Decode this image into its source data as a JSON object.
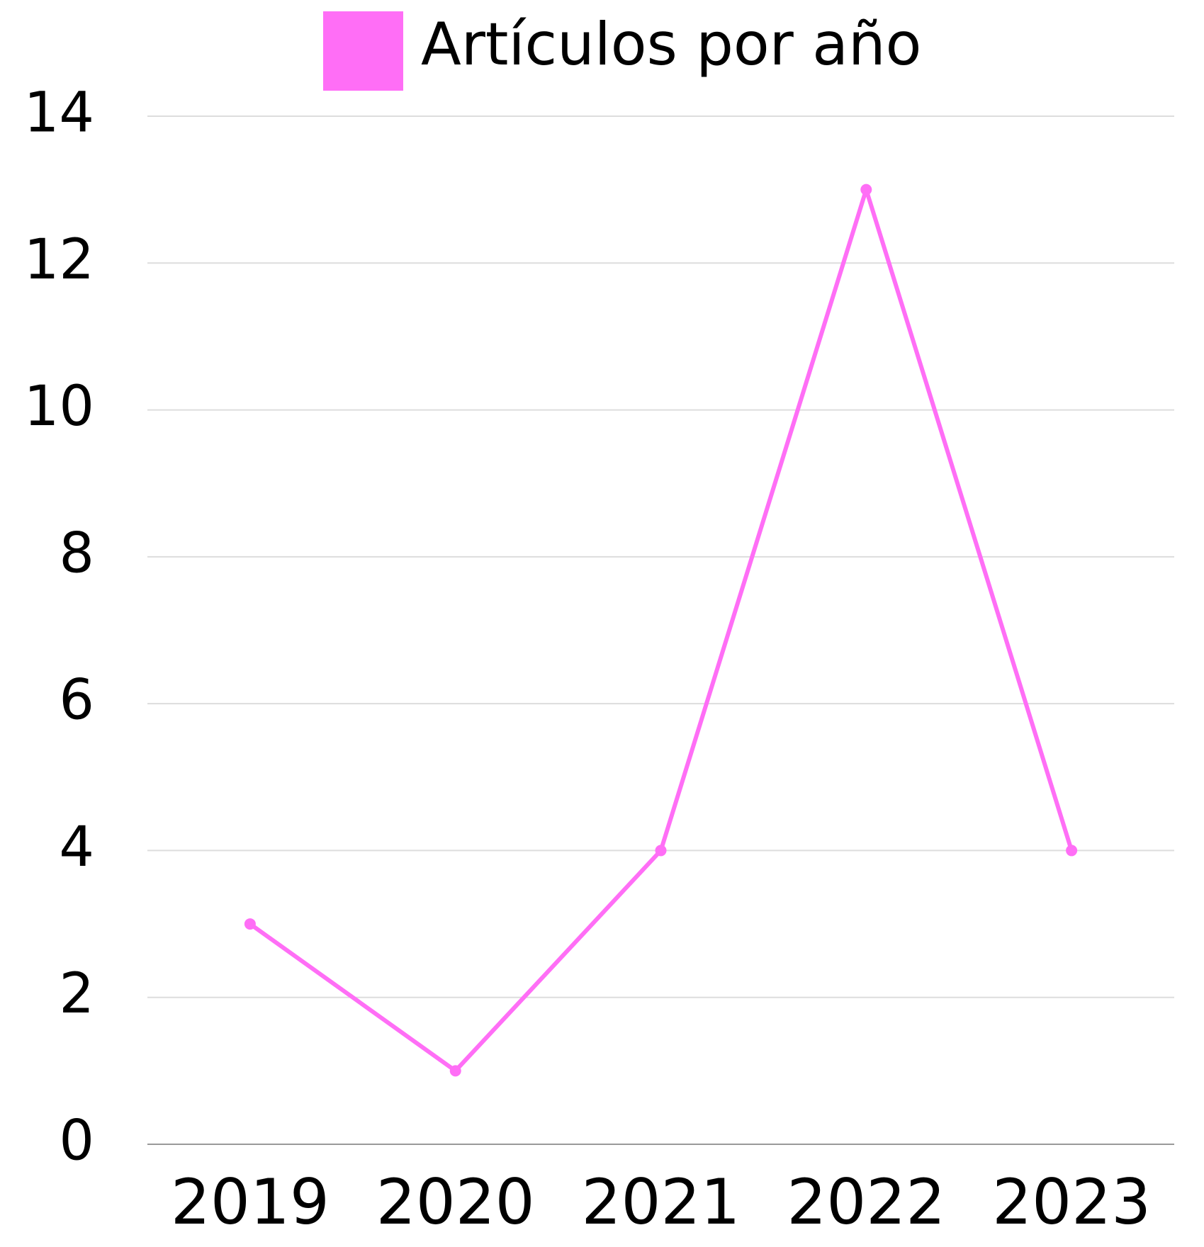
{
  "chart_data": {
    "type": "line",
    "categories": [
      "2019",
      "2020",
      "2021",
      "2022",
      "2023"
    ],
    "series": [
      {
        "name": "Artículos por año",
        "color": "#ff6ef6",
        "values": [
          3,
          1,
          4,
          13,
          4
        ]
      }
    ],
    "ylim": [
      0,
      14
    ],
    "yticks": [
      0,
      2,
      4,
      6,
      8,
      10,
      12,
      14
    ],
    "grid": true,
    "legend": "top"
  }
}
